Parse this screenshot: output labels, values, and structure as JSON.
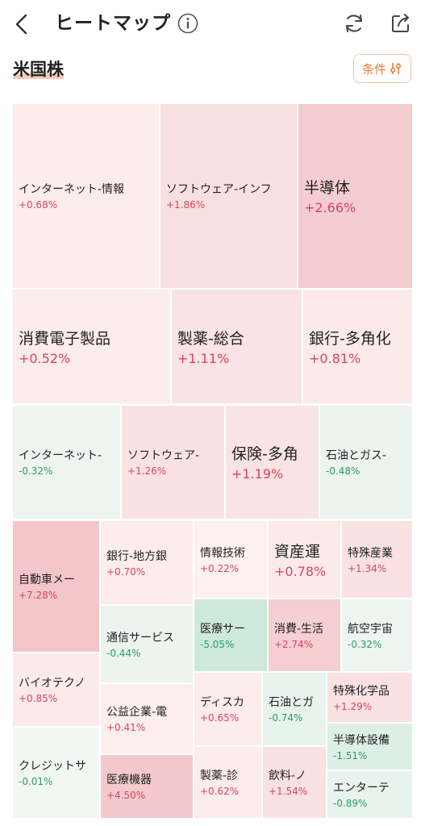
{
  "header": {
    "title": "ヒートマップ",
    "back_icon": "chevron-left-icon",
    "info_icon": "info-icon",
    "refresh_icon": "refresh-icon",
    "share_icon": "share-icon"
  },
  "section": {
    "title": "米国株",
    "condition_label": "条件",
    "condition_icon": "sliders-icon"
  },
  "colors": {
    "accent": "#ef7d3c",
    "positive_text": "#d9455a",
    "negative_text": "#2e9a6b"
  },
  "tiles": [
    {
      "name": "インターネット-情報",
      "change": "+0.68%",
      "bg": "#fcecec"
    },
    {
      "name": "ソフトウェア-インフ",
      "change": "+1.86%",
      "bg": "#f9e0e0"
    },
    {
      "name": "半導体",
      "change": "+2.66%",
      "bg": "#f4cdd0"
    },
    {
      "name": "消費電子製品",
      "change": "+0.52%",
      "bg": "#fcecec"
    },
    {
      "name": "製薬-総合",
      "change": "+1.11%",
      "bg": "#fae3e4"
    },
    {
      "name": "銀行-多角化",
      "change": "+0.81%",
      "bg": "#fceaea"
    },
    {
      "name": "インターネット-",
      "change": "-0.32%",
      "bg": "#eef5f1"
    },
    {
      "name": "ソフトウェア-",
      "change": "+1.26%",
      "bg": "#fae2e3"
    },
    {
      "name": "保険-多角",
      "change": "+1.19%",
      "bg": "#fae3e4"
    },
    {
      "name": "石油とガス-",
      "change": "-0.48%",
      "bg": "#ebf4ef"
    },
    {
      "name": "自動車メー",
      "change": "+7.28%",
      "bg": "#f3c6ca"
    },
    {
      "name": "銀行-地方銀",
      "change": "+0.70%",
      "bg": "#fcecec"
    },
    {
      "name": "情報技術",
      "change": "+0.22%",
      "bg": "#fdf0f0"
    },
    {
      "name": "資産運",
      "change": "+0.78%",
      "bg": "#fceaea"
    },
    {
      "name": "特殊産業",
      "change": "+1.34%",
      "bg": "#fae2e3"
    },
    {
      "name": "通信サービス",
      "change": "-0.44%",
      "bg": "#ebf4ef"
    },
    {
      "name": "医療サー",
      "change": "-5.05%",
      "bg": "#cde8dc"
    },
    {
      "name": "消費-生活",
      "change": "+2.74%",
      "bg": "#f5cfd2"
    },
    {
      "name": "航空宇宙",
      "change": "-0.32%",
      "bg": "#eef5f1"
    },
    {
      "name": "バイオテクノ",
      "change": "+0.85%",
      "bg": "#fceaea"
    },
    {
      "name": "公益企業-電",
      "change": "+0.41%",
      "bg": "#fdeeee"
    },
    {
      "name": "ディスカ",
      "change": "+0.65%",
      "bg": "#fcecec"
    },
    {
      "name": "石油とガ",
      "change": "-0.74%",
      "bg": "#e8f3ed"
    },
    {
      "name": "特殊化学品",
      "change": "+1.29%",
      "bg": "#fae2e3"
    },
    {
      "name": "半導体設備",
      "change": "-1.51%",
      "bg": "#deefe6"
    },
    {
      "name": "クレジットサ",
      "change": "-0.01%",
      "bg": "#f1f7f3"
    },
    {
      "name": "医療機器",
      "change": "+4.50%",
      "bg": "#f3c9cd"
    },
    {
      "name": "製薬-診",
      "change": "+0.62%",
      "bg": "#fcecec"
    },
    {
      "name": "飲料-ノ",
      "change": "+1.54%",
      "bg": "#f9e0e1"
    },
    {
      "name": "エンターテ",
      "change": "-0.89%",
      "bg": "#e8f3ed"
    }
  ]
}
